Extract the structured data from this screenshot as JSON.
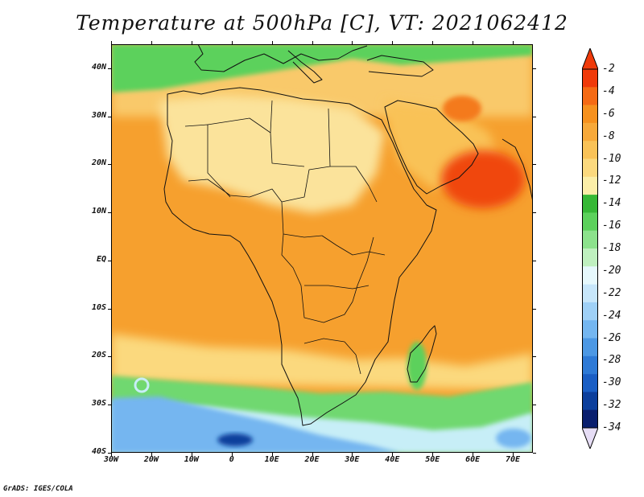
{
  "title": "Temperature at 500hPa [C], VT: 2021062412",
  "credit": "GrADS: IGES/COLA",
  "map": {
    "lon_range": [
      -30,
      75
    ],
    "lat_range": [
      -40,
      45
    ],
    "lat_ticks": [
      {
        "value": 40,
        "label": "40N"
      },
      {
        "value": 30,
        "label": "30N"
      },
      {
        "value": 20,
        "label": "20N"
      },
      {
        "value": 10,
        "label": "10N"
      },
      {
        "value": 0,
        "label": "EQ"
      },
      {
        "value": -10,
        "label": "10S"
      },
      {
        "value": -20,
        "label": "20S"
      },
      {
        "value": -30,
        "label": "30S"
      },
      {
        "value": -40,
        "label": "40S"
      }
    ],
    "lon_ticks": [
      {
        "value": -30,
        "label": "30W"
      },
      {
        "value": -20,
        "label": "20W"
      },
      {
        "value": -10,
        "label": "10W"
      },
      {
        "value": 0,
        "label": "0"
      },
      {
        "value": 10,
        "label": "10E"
      },
      {
        "value": 20,
        "label": "20E"
      },
      {
        "value": 30,
        "label": "30E"
      },
      {
        "value": 40,
        "label": "40E"
      },
      {
        "value": 50,
        "label": "50E"
      },
      {
        "value": 60,
        "label": "60E"
      },
      {
        "value": 70,
        "label": "70E"
      }
    ]
  },
  "colorbar": {
    "orientation": "vertical",
    "placement": "right",
    "labels": [
      "-2",
      "-4",
      "-6",
      "-8",
      "-10",
      "-12",
      "-14",
      "-16",
      "-18",
      "-20",
      "-22",
      "-24",
      "-26",
      "-28",
      "-30",
      "-32",
      "-34"
    ],
    "colors_top_to_bottom": [
      "#f03a0a",
      "#f56a14",
      "#f6911e",
      "#f7a93a",
      "#f9c257",
      "#fbd97e",
      "#fbeea8",
      "#36b836",
      "#5cd15c",
      "#8ce28c",
      "#bff0bf",
      "#e6f8fc",
      "#c7e6fa",
      "#9fd0f6",
      "#74b6f0",
      "#4c98e4",
      "#2e7ad6",
      "#1a5ec4",
      "#0c3f9c",
      "#0a1f6e"
    ],
    "extend_top_color": "#f03a0a",
    "extend_bottom_color": "#e6ddf5"
  },
  "regions": {
    "background": "#f6a02e",
    "sahara": "#fbe39b",
    "arabia": "#f9c257",
    "hot_arabian_sea": "#f0460e",
    "north_band": "#f9c96a",
    "med_green": "#5cd15c",
    "south_band": "#fbd97e",
    "south_green": "#6fd86f",
    "south_light": "#c7eef7",
    "south_blue": "#74b6f0",
    "deep_blue": "#0c3f9c",
    "coast": "#111111"
  }
}
